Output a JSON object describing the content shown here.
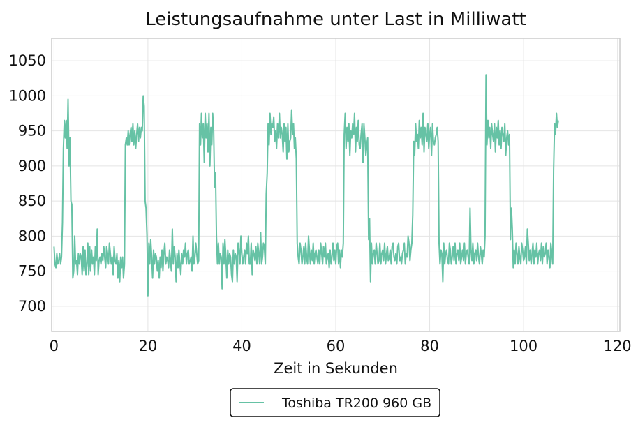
{
  "chart_data": {
    "type": "line",
    "title": "Leistungsaufnahme unter Last in Milliwatt",
    "xlabel": "Zeit in Sekunden",
    "ylabel": "",
    "xlim": [
      -0.5,
      120.5
    ],
    "ylim": [
      664,
      1082
    ],
    "x_ticks": [
      0,
      20,
      40,
      60,
      80,
      100,
      120
    ],
    "y_ticks": [
      700,
      750,
      800,
      850,
      900,
      950,
      1000,
      1050
    ],
    "grid": true,
    "legend_position": "bottom-center",
    "series": [
      {
        "name": "Toshiba TR200 960 GB",
        "color": "#66c2a5",
        "sample_interval_s": 0.2,
        "x_start": 0,
        "values": [
          785,
          760,
          755,
          775,
          760,
          765,
          775,
          760,
          770,
          820,
          925,
          965,
          940,
          965,
          925,
          995,
          900,
          940,
          850,
          845,
          740,
          750,
          800,
          760,
          765,
          745,
          775,
          760,
          775,
          770,
          745,
          785,
          750,
          780,
          745,
          760,
          790,
          745,
          785,
          750,
          780,
          760,
          770,
          745,
          785,
          765,
          810,
          745,
          765,
          770,
          760,
          775,
          765,
          785,
          770,
          755,
          785,
          775,
          760,
          790,
          775,
          760,
          770,
          745,
          785,
          765,
          760,
          775,
          740,
          765,
          735,
          770,
          755,
          770,
          740,
          760,
          930,
          940,
          930,
          950,
          930,
          945,
          955,
          935,
          960,
          930,
          950,
          925,
          945,
          960,
          935,
          955,
          940,
          955,
          950,
          1000,
          985,
          850,
          840,
          800,
          715,
          790,
          760,
          795,
          770,
          740,
          780,
          760,
          775,
          770,
          750,
          765,
          740,
          770,
          755,
          780,
          750,
          775,
          790,
          760,
          770,
          765,
          755,
          780,
          765,
          750,
          810,
          760,
          785,
          770,
          735,
          775,
          755,
          780,
          760,
          745,
          775,
          760,
          780,
          770,
          790,
          760,
          775,
          780,
          760,
          765,
          770,
          750,
          800,
          760,
          770,
          790,
          775,
          760,
          765,
          960,
          930,
          975,
          940,
          960,
          905,
          975,
          940,
          960,
          920,
          975,
          900,
          955,
          930,
          975,
          950,
          870,
          890,
          800,
          760,
          790,
          760,
          775,
          770,
          725,
          790,
          760,
          795,
          770,
          740,
          780,
          760,
          775,
          770,
          745,
          735,
          780,
          760,
          775,
          770,
          735,
          790,
          780,
          760,
          800,
          775,
          760,
          770,
          780,
          760,
          790,
          775,
          800,
          760,
          760,
          790,
          745,
          780,
          775,
          765,
          785,
          760,
          790,
          775,
          760,
          805,
          760,
          770,
          790,
          785,
          760,
          860,
          890,
          960,
          930,
          975,
          945,
          960,
          955,
          970,
          935,
          950,
          925,
          960,
          940,
          975,
          940,
          955,
          945,
          920,
          960,
          935,
          955,
          910,
          960,
          920,
          935,
          940,
          980,
          945,
          960,
          925,
          940,
          910,
          790,
          770,
          760,
          790,
          780,
          760,
          770,
          785,
          760,
          790,
          770,
          760,
          800,
          780,
          760,
          780,
          765,
          790,
          760,
          775,
          780,
          770,
          760,
          780,
          760,
          790,
          775,
          760,
          785,
          770,
          790,
          760,
          770,
          775,
          755,
          780,
          760,
          770,
          790,
          765,
          780,
          760,
          785,
          790,
          760,
          780,
          755,
          780,
          770,
          790,
          945,
          975,
          925,
          955,
          935,
          960,
          915,
          950,
          940,
          960,
          945,
          975,
          920,
          955,
          935,
          965,
          930,
          925,
          945,
          960,
          905,
          960,
          940,
          915,
          930,
          940,
          795,
          825,
          735,
          790,
          760,
          775,
          780,
          760,
          790,
          775,
          760,
          765,
          790,
          760,
          775,
          780,
          765,
          790,
          760,
          775,
          785,
          765,
          770,
          780,
          760,
          785,
          790,
          770,
          765,
          775,
          760,
          785,
          790,
          765,
          770,
          760,
          775,
          780,
          790,
          760,
          775,
          770,
          800,
          790,
          765,
          780,
          790,
          830,
          935,
          915,
          960,
          935,
          945,
          925,
          965,
          940,
          955,
          930,
          975,
          920,
          955,
          945,
          935,
          960,
          925,
          945,
          955,
          915,
          960,
          935,
          930,
          940,
          945,
          955,
          935,
          790,
          760,
          780,
          775,
          735,
          790,
          760,
          775,
          780,
          765,
          760,
          790,
          780,
          760,
          770,
          785,
          765,
          790,
          760,
          775,
          780,
          765,
          790,
          760,
          770,
          780,
          765,
          790,
          760,
          775,
          780,
          770,
          760,
          840,
          780,
          765,
          790,
          760,
          775,
          780,
          765,
          790,
          770,
          760,
          785,
          775,
          760,
          780,
          770,
          800,
          1030,
          930,
          965,
          940,
          955,
          925,
          960,
          945,
          935,
          960,
          920,
          955,
          940,
          965,
          930,
          950,
          925,
          955,
          945,
          935,
          960,
          915,
          940,
          950,
          930,
          945,
          795,
          840,
          810,
          755,
          780,
          760,
          790,
          775,
          760,
          785,
          770,
          760,
          790,
          780,
          765,
          770,
          785,
          760,
          810,
          790,
          765,
          780,
          760,
          775,
          790,
          760,
          780,
          770,
          790,
          760,
          775,
          780,
          765,
          790,
          760,
          785,
          770,
          775,
          790,
          760,
          780,
          770,
          755,
          790,
          775,
          760,
          895,
          960,
          945,
          975,
          955,
          965
        ]
      }
    ]
  }
}
